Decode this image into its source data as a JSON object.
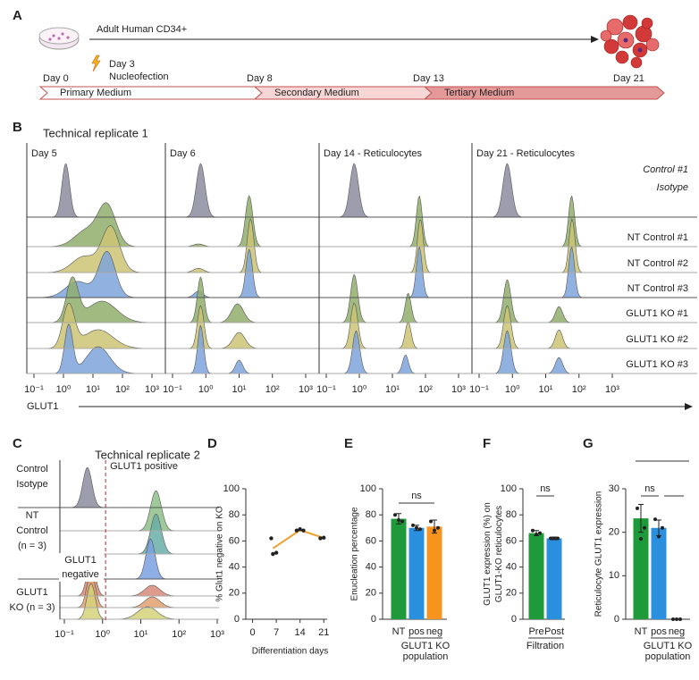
{
  "panel_labels": [
    "A",
    "B",
    "C",
    "D",
    "E",
    "F",
    "G"
  ],
  "timeline": {
    "source": "Adult Human CD34+",
    "event": [
      "Day 3",
      "Nucleofection"
    ],
    "days": [
      "Day 0",
      "Day 8",
      "Day 13",
      "Day 21"
    ],
    "media": [
      "Primary Medium",
      "Secondary Medium",
      "Tertiary Medium"
    ]
  },
  "flow_b": {
    "title": "Technical replicate 1",
    "columns": [
      "Day 5",
      "Day 6",
      "Day 14 - Reticulocytes",
      "Day 21 - Reticulocytes"
    ],
    "xticks": [
      {
        "value": 0.1,
        "label": "10⁻¹"
      },
      {
        "value": 1,
        "label": "10⁰"
      },
      {
        "value": 10,
        "label": "10¹"
      },
      {
        "value": 100,
        "label": "10²"
      },
      {
        "value": 1000,
        "label": "10³"
      }
    ],
    "xlabel": "GLUT1",
    "rows": [
      {
        "label": [
          "Control #1",
          "Isotype"
        ],
        "color": "#8c8ca0",
        "peaks": [
          [
            [
              1.2,
              1,
              0.13
            ]
          ],
          [
            [
              0.7,
              1,
              0.13
            ]
          ],
          [
            [
              0.7,
              1,
              0.13
            ]
          ],
          [
            [
              0.7,
              1,
              0.13
            ]
          ]
        ]
      },
      {
        "label": [
          "NT Control #1"
        ],
        "color": "#8fae6c",
        "peaks": [
          [
            [
              30,
              0.75,
              0.3
            ],
            [
              6,
              0.3,
              0.4
            ]
          ],
          [
            [
              20,
              0.95,
              0.11
            ],
            [
              0.6,
              0.05,
              0.15
            ]
          ],
          [
            [
              65,
              0.95,
              0.09
            ]
          ],
          [
            [
              60,
              0.95,
              0.09
            ]
          ]
        ]
      },
      {
        "label": [
          "NT Control #2"
        ],
        "color": "#cdc474",
        "peaks": [
          [
            [
              40,
              0.85,
              0.3
            ],
            [
              5,
              0.3,
              0.4
            ]
          ],
          [
            [
              22,
              1,
              0.1
            ],
            [
              0.6,
              0.08,
              0.15
            ]
          ],
          [
            [
              70,
              1,
              0.09
            ]
          ],
          [
            [
              62,
              1,
              0.09
            ]
          ]
        ]
      },
      {
        "label": [
          "NT Control #3"
        ],
        "color": "#7ea5da",
        "peaks": [
          [
            [
              30,
              0.85,
              0.28
            ],
            [
              3,
              0.3,
              0.4
            ]
          ],
          [
            [
              20,
              0.9,
              0.1
            ],
            [
              0.6,
              0.12,
              0.13
            ]
          ],
          [
            [
              65,
              0.95,
              0.09
            ]
          ],
          [
            [
              60,
              0.95,
              0.09
            ]
          ]
        ]
      },
      {
        "label": [
          "GLUT1 KO #1"
        ],
        "color": "#8fae6c",
        "peaks": [
          [
            [
              2,
              0.8,
              0.2
            ],
            [
              20,
              0.4,
              0.5
            ]
          ],
          [
            [
              0.7,
              0.85,
              0.1
            ],
            [
              9,
              0.35,
              0.18
            ]
          ],
          [
            [
              0.7,
              0.9,
              0.11
            ],
            [
              30,
              0.55,
              0.09
            ]
          ],
          [
            [
              0.7,
              0.8,
              0.11
            ],
            [
              25,
              0.3,
              0.11
            ]
          ]
        ]
      },
      {
        "label": [
          "GLUT1 KO #2"
        ],
        "color": "#cdc474",
        "peaks": [
          [
            [
              1.5,
              0.8,
              0.2
            ],
            [
              15,
              0.35,
              0.5
            ]
          ],
          [
            [
              0.7,
              0.8,
              0.1
            ],
            [
              10,
              0.3,
              0.18
            ]
          ],
          [
            [
              0.7,
              0.85,
              0.11
            ],
            [
              30,
              0.5,
              0.09
            ]
          ],
          [
            [
              0.7,
              0.8,
              0.11
            ],
            [
              25,
              0.35,
              0.11
            ]
          ]
        ]
      },
      {
        "label": [
          "GLUT1 KO #3"
        ],
        "color": "#7ea5da",
        "peaks": [
          [
            [
              1.5,
              0.9,
              0.14
            ],
            [
              15,
              0.5,
              0.4
            ]
          ],
          [
            [
              0.7,
              0.9,
              0.09
            ],
            [
              10,
              0.25,
              0.11
            ]
          ],
          [
            [
              0.8,
              0.8,
              0.11
            ],
            [
              25,
              0.35,
              0.09
            ]
          ],
          [
            [
              0.7,
              0.8,
              0.11
            ],
            [
              25,
              0.3,
              0.11
            ]
          ]
        ]
      }
    ]
  },
  "flow_c": {
    "title": "Technical replicate 2",
    "groups": [
      [
        "Control",
        "Isotype"
      ],
      [
        "NT",
        "Control",
        "(n = 3)"
      ],
      [
        "GLUT1",
        "KO (n = 3)"
      ]
    ],
    "gate": 1.2,
    "gate_labels": {
      "positive": "GLUT1 positive",
      "negative": [
        "GLUT1",
        "negative"
      ]
    },
    "xticks": [
      {
        "value": 0.1,
        "label": "10⁻¹"
      },
      {
        "value": 1,
        "label": "10⁰"
      },
      {
        "value": 10,
        "label": "10¹"
      },
      {
        "value": 100,
        "label": "10²"
      },
      {
        "value": 1000,
        "label": "10³"
      }
    ],
    "rows": [
      {
        "color": "#8c8ca0",
        "peaks": [
          [
            0.4,
            1,
            0.12
          ]
        ]
      },
      {
        "color": "#8fbf8a",
        "peaks": [
          [
            25,
            1,
            0.14
          ]
        ]
      },
      {
        "color": "#6aaea8",
        "peaks": [
          [
            25,
            1,
            0.14
          ]
        ]
      },
      {
        "color": "#7aa0e0",
        "peaks": [
          [
            18,
            1,
            0.12
          ]
        ]
      },
      {
        "color": "#d68a78",
        "peaks": [
          [
            0.5,
            1,
            0.11
          ],
          [
            20,
            0.3,
            0.2
          ]
        ]
      },
      {
        "color": "#e0a070",
        "peaks": [
          [
            0.5,
            1,
            0.11
          ],
          [
            20,
            0.3,
            0.2
          ]
        ]
      },
      {
        "color": "#d5d27a",
        "peaks": [
          [
            0.5,
            1,
            0.11
          ],
          [
            15,
            0.35,
            0.25
          ]
        ]
      }
    ]
  },
  "chart_data": [
    {
      "type": "scatter",
      "ylabel": "% Glut1 negative on KO",
      "xlabel": "Differentiation days",
      "x": [
        5.5,
        6,
        7,
        13,
        14,
        15,
        20,
        21
      ],
      "y": [
        62,
        50,
        51,
        68,
        69,
        68,
        62,
        62.5
      ],
      "color": "#222222",
      "mean_line": {
        "x": [
          6,
          14,
          21
        ],
        "y": [
          54.3,
          68.3,
          62.3
        ],
        "color": "#f0a030"
      },
      "xlim": [
        -2,
        22
      ],
      "xticks": [
        0,
        7,
        14,
        21
      ],
      "ylim": [
        0,
        100
      ],
      "yticks": [
        0,
        20,
        40,
        60,
        80,
        100
      ]
    },
    {
      "type": "bar",
      "ylabel": "Enucleation percentage",
      "categories": [
        "NT",
        "pos",
        "neg"
      ],
      "values": [
        77,
        70,
        71
      ],
      "errors": [
        4,
        2,
        5
      ],
      "points": [
        [
          80,
          76,
          75
        ],
        [
          72,
          70,
          69
        ],
        [
          75,
          68,
          70
        ]
      ],
      "colors": [
        "#1f9a3a",
        "#2b8fe0",
        "#f7941d"
      ],
      "group_label": [
        "GLUT1 KO",
        "population"
      ],
      "annotation": "ns",
      "ylim": [
        0,
        100
      ],
      "yticks": [
        0,
        20,
        40,
        60,
        80,
        100
      ]
    },
    {
      "type": "bar",
      "ylabel": [
        "GLUT1 expression (%) on",
        "GLUT1-KO reticulocytes"
      ],
      "categories": [
        "Pre",
        "Post"
      ],
      "values": [
        66,
        62
      ],
      "errors": [
        2,
        1
      ],
      "points": [
        [
          68,
          65,
          66
        ],
        [
          62,
          62,
          62
        ]
      ],
      "colors": [
        "#1f9a3a",
        "#2b8fe0"
      ],
      "group_label": [
        "Filtration"
      ],
      "annotation": "ns",
      "ylim": [
        0,
        100
      ],
      "yticks": [
        0,
        20,
        40,
        60,
        80,
        100
      ]
    },
    {
      "type": "bar",
      "ylabel": "Reticulocyte GLUT1 expression",
      "categories": [
        "NT",
        "pos",
        "neg"
      ],
      "values": [
        23.2,
        21,
        0
      ],
      "errors": [
        3.2,
        1.8,
        0
      ],
      "points": [
        [
          25.5,
          18.5,
          21
        ],
        [
          23,
          19,
          21
        ],
        [
          0,
          0,
          0
        ]
      ],
      "colors": [
        "#1f9a3a",
        "#2b8fe0",
        "#f7941d"
      ],
      "group_label": [
        "GLUT1 KO",
        "population"
      ],
      "annotation": "ns",
      "ylim": [
        0,
        30
      ],
      "yticks": [
        0,
        10,
        20,
        30
      ]
    }
  ]
}
